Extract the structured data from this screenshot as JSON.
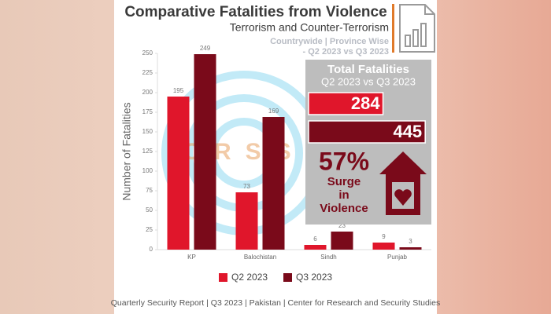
{
  "chart_data": {
    "type": "bar",
    "title": "Comparative Fatalities from Violence",
    "subtitle": "Terrorism and Counter-Terrorism",
    "scope": "Countrywide | Province Wise",
    "period": "- Q2 2023 vs Q3 2023",
    "y_label": "Number of Fatalities",
    "categories": [
      "KP",
      "Balochistan",
      "Sindh",
      "Punjab"
    ],
    "series": [
      {
        "name": "Q2 2023",
        "color": "#e0162b",
        "values": [
          195,
          73,
          6,
          9
        ]
      },
      {
        "name": "Q3 2023",
        "color": "#7a0a1a",
        "values": [
          249,
          169,
          23,
          3
        ]
      }
    ],
    "ylim": [
      0,
      250
    ],
    "yticks": [
      0,
      25,
      50,
      75,
      100,
      125,
      150,
      175,
      200,
      225,
      250
    ],
    "grid": false,
    "legend": "bottom",
    "watermark": "CRSS",
    "footer": "Quarterly Security Report | Q3 2023 | Pakistan | Center for Research and Security Studies"
  },
  "totals_panel": {
    "title": "Total Fatalities",
    "subtitle": "Q2 2023 vs Q3 2023",
    "values": [
      284,
      445
    ],
    "colors": [
      "#e0162b",
      "#7a0a1a"
    ],
    "surge": "57%",
    "surge_text": [
      "Surge",
      "in",
      "Violence"
    ]
  }
}
